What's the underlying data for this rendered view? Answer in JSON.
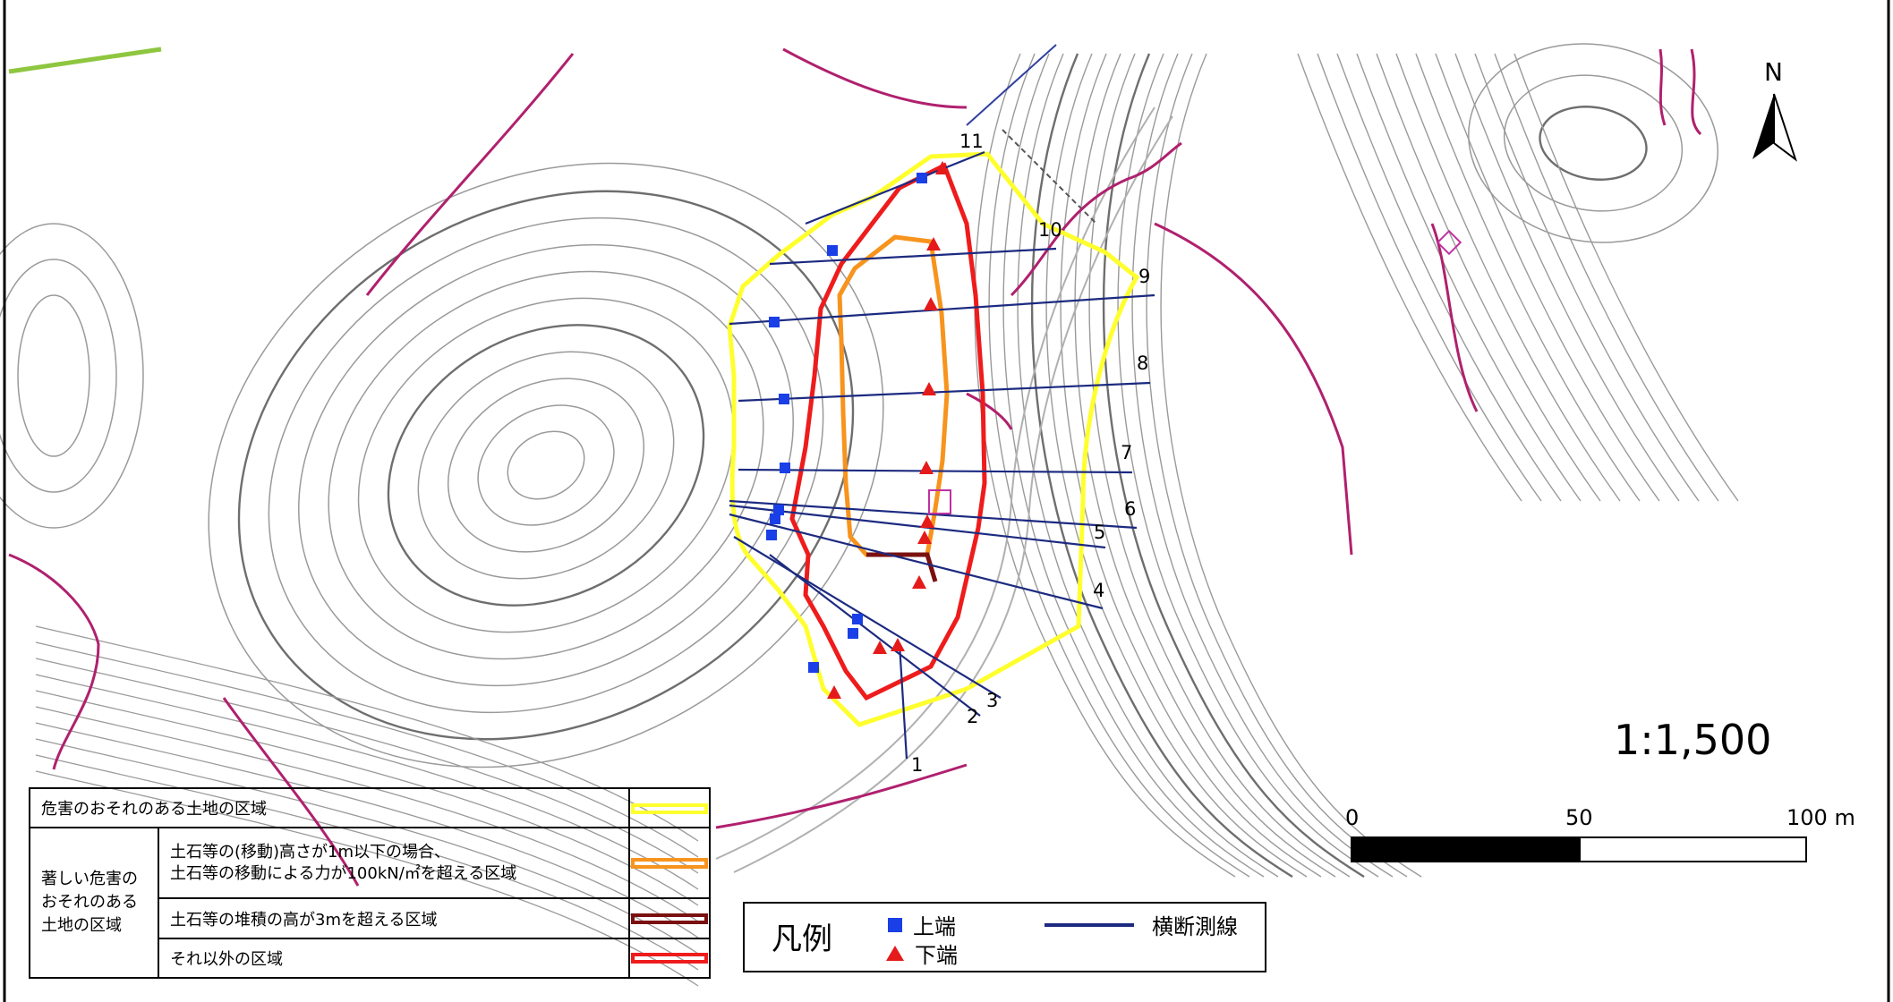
{
  "map": {
    "section_labels": [
      "1",
      "2",
      "3",
      "4",
      "5",
      "6",
      "7",
      "8",
      "9",
      "10",
      "11"
    ],
    "north_label": "N",
    "colors": {
      "contour": "#9a9a9a",
      "contour_index": "#6e6e6e",
      "road_edge": "#b0b0b0",
      "boundary": "#b0206e",
      "survey_line": "#1c2a80",
      "top_marker": "#1a3fe6",
      "bottom_marker": "#e51a1a",
      "zone_hazard": "#ffff2e",
      "zone_severe_1m": "#f7941d",
      "zone_severe_3m": "#7a1010",
      "zone_severe_other": "#ee1c1c"
    }
  },
  "zone_legend": {
    "rows": [
      {
        "label": "危害のおそれのある土地の区域",
        "color": "#ffff2e"
      },
      {
        "label_line1": "土石等の(移動)高さが1m以下の場合、",
        "label_line2": "土石等の移動による力が100kN/㎡を超える区域",
        "color": "#f7941d"
      },
      {
        "label": "土石等の堆積の高が3mを超える区域",
        "color": "#7a1010"
      },
      {
        "label": "それ以外の区域",
        "color": "#ee1c1c"
      }
    ],
    "group_line1": "著しい危害の",
    "group_line2": "おそれのある",
    "group_line3": "土地の区域"
  },
  "symbol_legend": {
    "title": "凡例",
    "top_label": "上端",
    "bottom_label": "下端",
    "survey_label": "横断測線"
  },
  "scale": {
    "ratio": "1:1,500",
    "tick_0": "0",
    "tick_50": "50",
    "tick_100": "100 m"
  }
}
